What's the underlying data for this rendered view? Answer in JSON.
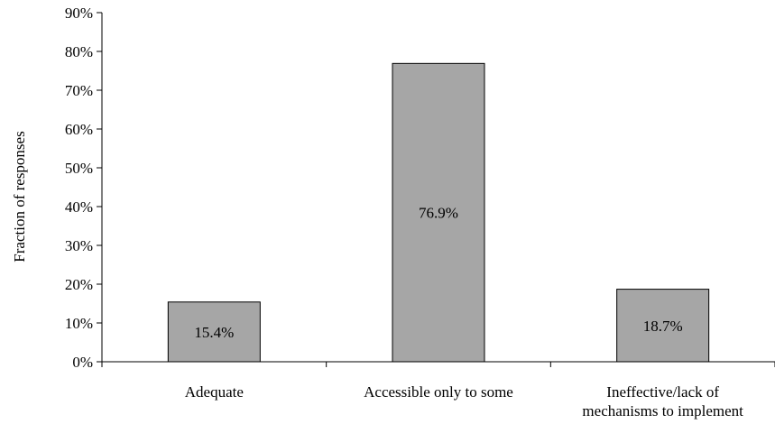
{
  "chart_data": {
    "type": "bar",
    "title": "",
    "xlabel": "",
    "ylabel": "Fraction of responses",
    "ylim": [
      0,
      90
    ],
    "y_ticks": [
      "0%",
      "10%",
      "20%",
      "30%",
      "40%",
      "50%",
      "60%",
      "70%",
      "80%",
      "90%"
    ],
    "y_tick_values": [
      0,
      10,
      20,
      30,
      40,
      50,
      60,
      70,
      80,
      90
    ],
    "categories": [
      [
        "Adequate"
      ],
      [
        "Accessible only to some"
      ],
      [
        "Ineffective/lack of",
        "mechanisms to implement"
      ]
    ],
    "values": [
      15.4,
      76.9,
      18.7
    ],
    "data_labels": [
      "15.4%",
      "76.9%",
      "18.7%"
    ],
    "grid": false,
    "legend": "none",
    "colors": {
      "bar_fill": "#a6a6a6",
      "bar_stroke": "#000000",
      "axis": "#000000",
      "text": "#000000"
    }
  }
}
